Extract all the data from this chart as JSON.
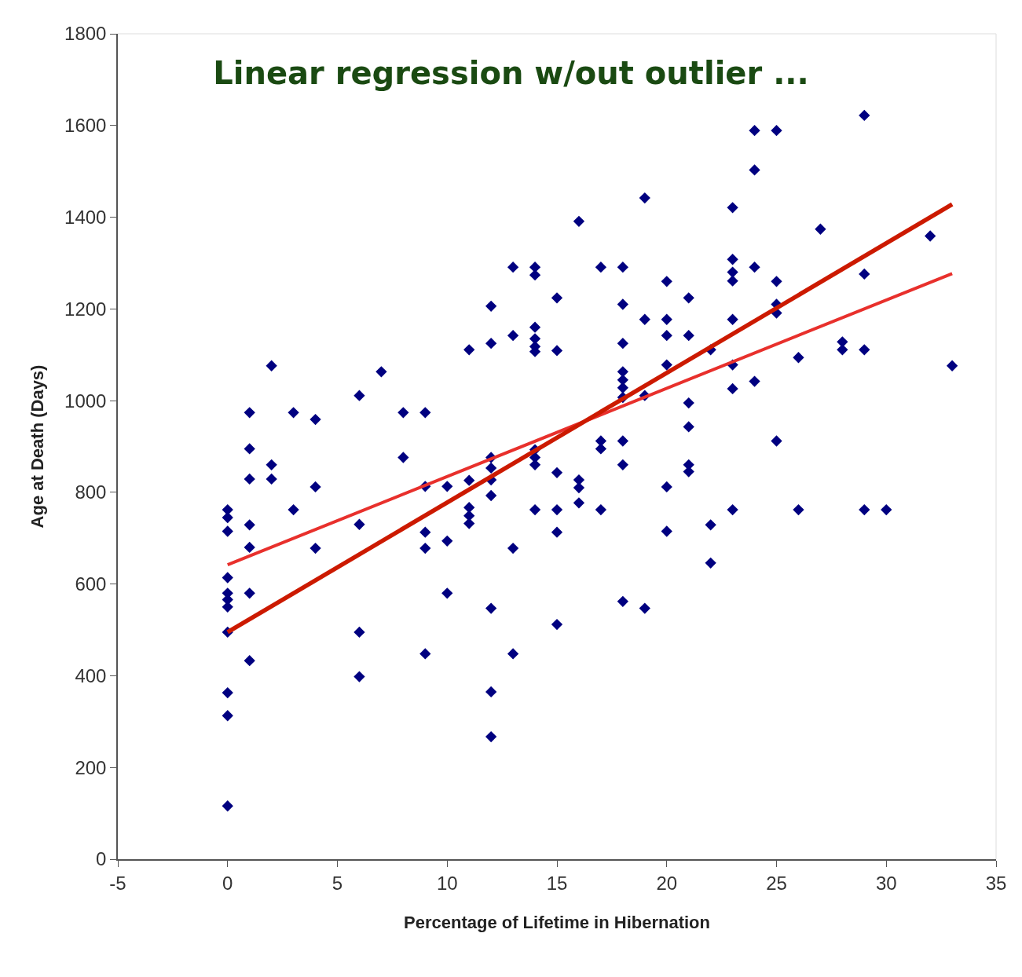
{
  "chart_data": {
    "type": "scatter",
    "title": "Linear regression w/out outlier ...",
    "xlabel": "Percentage of Lifetime in Hibernation",
    "ylabel": "Age at Death (Days)",
    "xlim": [
      -5,
      35
    ],
    "xticks": [
      -5,
      0,
      5,
      10,
      15,
      20,
      25,
      30,
      35
    ],
    "ylim": [
      0,
      1800
    ],
    "yticks": [
      0,
      200,
      400,
      600,
      800,
      1000,
      1200,
      1400,
      1600,
      1800
    ],
    "grid": false,
    "marker": "diamond",
    "series": [
      {
        "color": "#000080",
        "x": [
          0,
          0,
          0,
          0,
          0,
          0,
          0,
          0,
          0,
          0,
          0,
          1,
          1,
          1,
          1,
          1,
          1,
          1,
          2,
          2,
          2,
          3,
          3,
          4,
          4,
          4,
          6,
          6,
          6,
          6,
          7,
          8,
          8,
          9,
          9,
          9,
          9,
          9,
          10,
          10,
          10,
          11,
          11,
          11,
          11,
          11,
          12,
          12,
          12,
          12,
          12,
          12,
          12,
          12,
          12,
          13,
          13,
          13,
          13,
          14,
          14,
          14,
          14,
          14,
          14,
          14,
          14,
          14,
          14,
          15,
          15,
          15,
          15,
          15,
          15,
          16,
          16,
          16,
          16,
          17,
          17,
          17,
          17,
          18,
          18,
          18,
          18,
          18,
          18,
          18,
          18,
          18,
          18,
          19,
          19,
          19,
          19,
          20,
          20,
          20,
          20,
          20,
          20,
          21,
          21,
          21,
          21,
          21,
          21,
          22,
          22,
          22,
          23,
          23,
          23,
          23,
          23,
          23,
          23,
          23,
          24,
          24,
          24,
          24,
          25,
          25,
          25,
          25,
          25,
          26,
          26,
          27,
          28,
          28,
          29,
          29,
          29,
          29,
          30,
          32,
          33
        ],
        "values": [
          762,
          745,
          715,
          614,
          580,
          566,
          550,
          495,
          363,
          313,
          116,
          974,
          895,
          829,
          729,
          680,
          580,
          433,
          1076,
          860,
          829,
          974,
          762,
          959,
          812,
          678,
          1011,
          730,
          495,
          398,
          1063,
          974,
          876,
          974,
          813,
          713,
          678,
          448,
          813,
          694,
          580,
          1111,
          826,
          767,
          749,
          732,
          1206,
          1125,
          876,
          853,
          827,
          793,
          547,
          365,
          267,
          1291,
          1142,
          678,
          448,
          1291,
          1274,
          1160,
          1135,
          1118,
          1107,
          893,
          876,
          860,
          762,
          1224,
          1109,
          843,
          762,
          713,
          512,
          1391,
          827,
          810,
          777,
          1291,
          912,
          895,
          762,
          1291,
          1210,
          1125,
          1063,
          1045,
          1028,
          1007,
          912,
          860,
          562,
          1442,
          1177,
          1011,
          547,
          1260,
          1177,
          1142,
          1078,
          812,
          715,
          1224,
          1142,
          995,
          943,
          860,
          845,
          1111,
          729,
          646,
          1421,
          1308,
          1280,
          1261,
          1177,
          1078,
          1026,
          762,
          1589,
          1503,
          1291,
          1042,
          1589,
          1260,
          1210,
          1191,
          912,
          1094,
          762,
          1374,
          1128,
          1111,
          1622,
          1276,
          1111,
          762,
          762,
          1359,
          1076
        ]
      },
      {
        "type": "line",
        "color": "#e8302c",
        "x": [
          0,
          33
        ],
        "values": [
          642,
          1277
        ],
        "marker": "none",
        "line_style": "solid"
      },
      {
        "type": "line",
        "color": "#cc1a00",
        "x": [
          0,
          33
        ],
        "values": [
          495,
          1428
        ],
        "marker": "none",
        "line_style": "solid"
      }
    ]
  }
}
